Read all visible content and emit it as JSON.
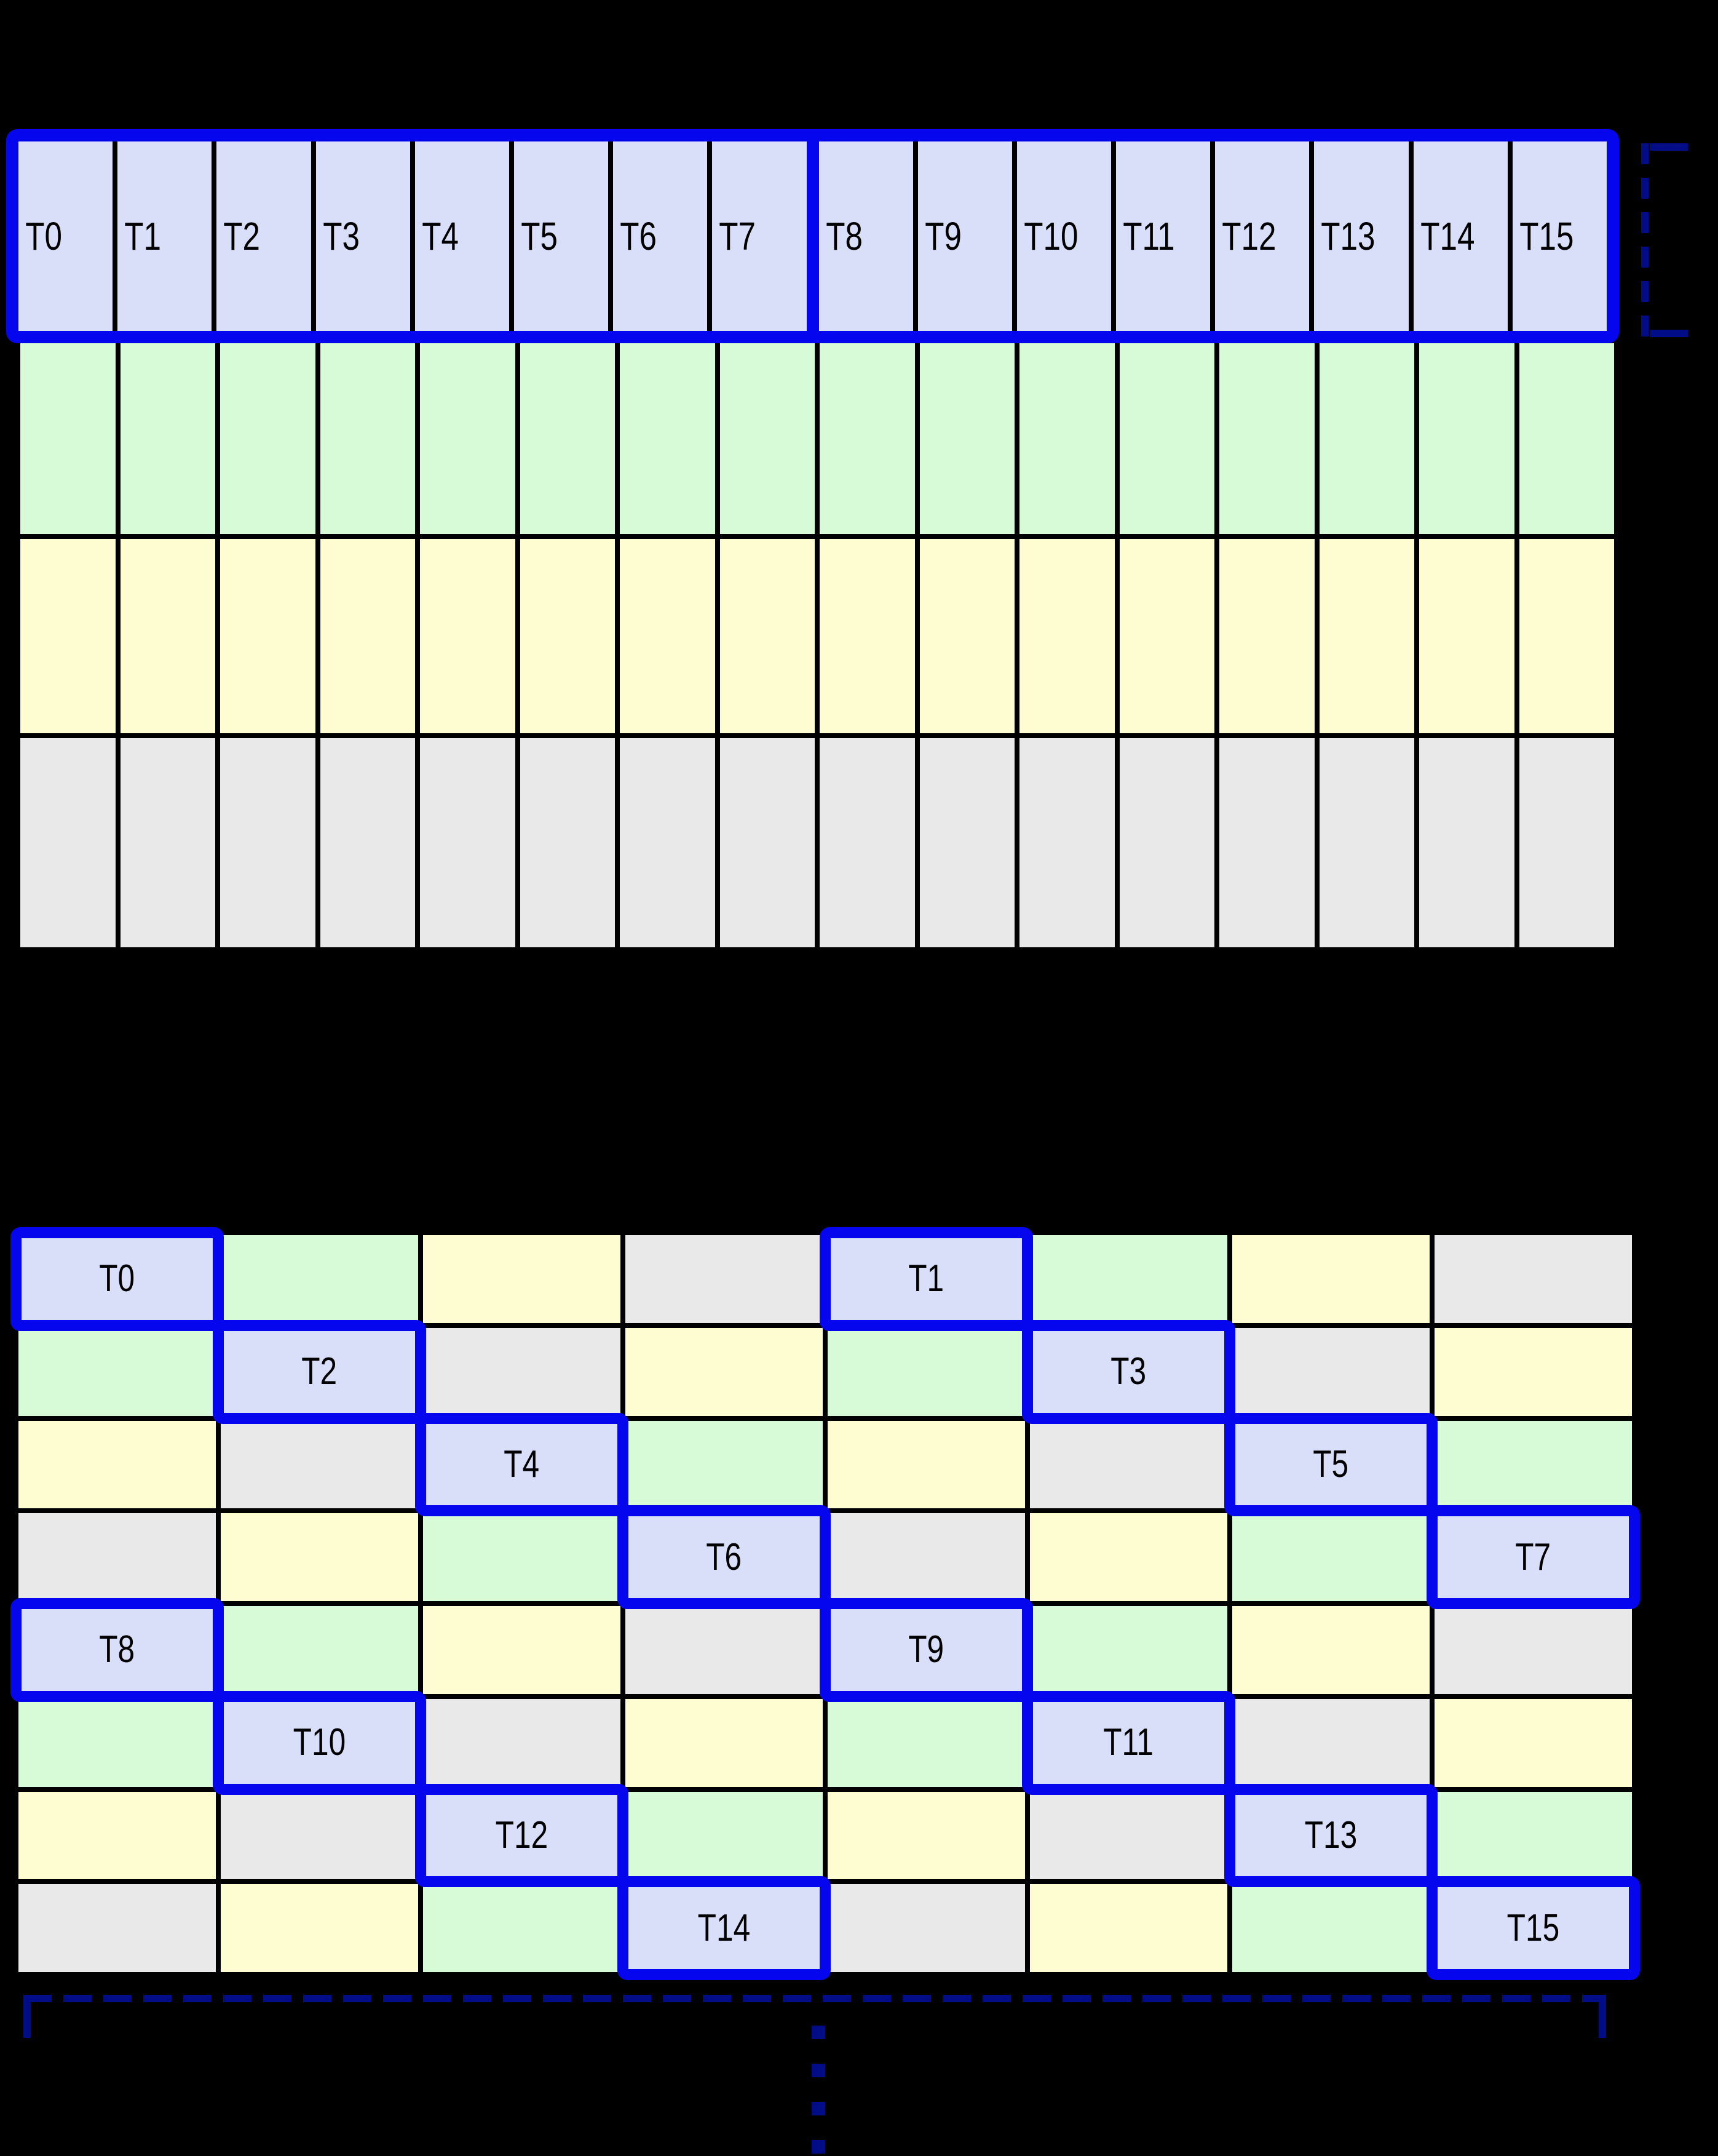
{
  "colors": {
    "highlight_blue": "#0505ee",
    "bracket_navy": "#000d86",
    "thread_cell_lavender": "#d9dff9",
    "memory_green": "#d6fbd6",
    "memory_yellow": "#fdfdd1",
    "memory_gray": "#e9e9e9",
    "grid_line_black": "#000000",
    "background": "#000000"
  },
  "grid1": {
    "columns": 16,
    "group_size": 8,
    "thread_labels": [
      "T0",
      "T1",
      "T2",
      "T3",
      "T4",
      "T5",
      "T6",
      "T7",
      "T8",
      "T9",
      "T10",
      "T11",
      "T12",
      "T13",
      "T14",
      "T15"
    ],
    "memory_row_colors": [
      "green",
      "yellow",
      "gray"
    ]
  },
  "grid2": {
    "columns": 8,
    "rows": 8,
    "cell_colors": [
      [
        "thread",
        "green",
        "yellow",
        "gray",
        "thread",
        "green",
        "yellow",
        "gray"
      ],
      [
        "green",
        "thread",
        "gray",
        "yellow",
        "green",
        "thread",
        "gray",
        "yellow"
      ],
      [
        "yellow",
        "gray",
        "thread",
        "green",
        "yellow",
        "gray",
        "thread",
        "green"
      ],
      [
        "gray",
        "yellow",
        "green",
        "thread",
        "gray",
        "yellow",
        "green",
        "thread"
      ],
      [
        "thread",
        "green",
        "yellow",
        "gray",
        "thread",
        "green",
        "yellow",
        "gray"
      ],
      [
        "green",
        "thread",
        "gray",
        "yellow",
        "green",
        "thread",
        "gray",
        "yellow"
      ],
      [
        "yellow",
        "gray",
        "thread",
        "green",
        "yellow",
        "gray",
        "thread",
        "green"
      ],
      [
        "gray",
        "yellow",
        "green",
        "thread",
        "gray",
        "yellow",
        "green",
        "thread"
      ]
    ],
    "cell_labels": [
      [
        "T0",
        "",
        "",
        "",
        "T1",
        "",
        "",
        ""
      ],
      [
        "",
        "T2",
        "",
        "",
        "",
        "T3",
        "",
        ""
      ],
      [
        "",
        "",
        "T4",
        "",
        "",
        "",
        "T5",
        ""
      ],
      [
        "",
        "",
        "",
        "T6",
        "",
        "",
        "",
        "T7"
      ],
      [
        "T8",
        "",
        "",
        "",
        "T9",
        "",
        "",
        ""
      ],
      [
        "",
        "T10",
        "",
        "",
        "",
        "T11",
        "",
        ""
      ],
      [
        "",
        "",
        "T12",
        "",
        "",
        "",
        "T13",
        ""
      ],
      [
        "",
        "",
        "",
        "T14",
        "",
        "",
        "",
        "T15"
      ]
    ]
  },
  "annotations": {
    "thread_row_bracket": "dashed-navy-bracket-right-of-thread-row",
    "memory_span_bracket": "dashed-navy-span-under-lower-grid",
    "continuation_dots": 4
  }
}
